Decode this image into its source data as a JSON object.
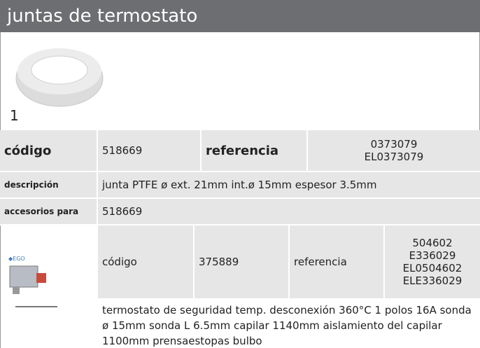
{
  "header": {
    "title": "juntas de termostato"
  },
  "item": {
    "image_label": "1",
    "code_label": "código",
    "code": "518669",
    "reference_label": "referencia",
    "references": [
      "0373079",
      "EL0373079"
    ],
    "description_label": "descripción",
    "description": "junta  PTFE ø ext. 21mm int.ø 15mm espesor  3.5mm",
    "accessories_label": "accesorios para",
    "accessories": "518669"
  },
  "accessory": {
    "code_label": "código",
    "code": "375889",
    "reference_label": "referencia",
    "references": [
      "504602",
      "E336029",
      "EL0504602",
      "ELE336029"
    ],
    "description": "termostato de seguridad  temp. desconexión 360°C 1 polos 16A sonda ø 15mm sonda L 6.5mm capilar 1140mm aislamiento del capilar 1100mm prensaestopas bulbo"
  }
}
